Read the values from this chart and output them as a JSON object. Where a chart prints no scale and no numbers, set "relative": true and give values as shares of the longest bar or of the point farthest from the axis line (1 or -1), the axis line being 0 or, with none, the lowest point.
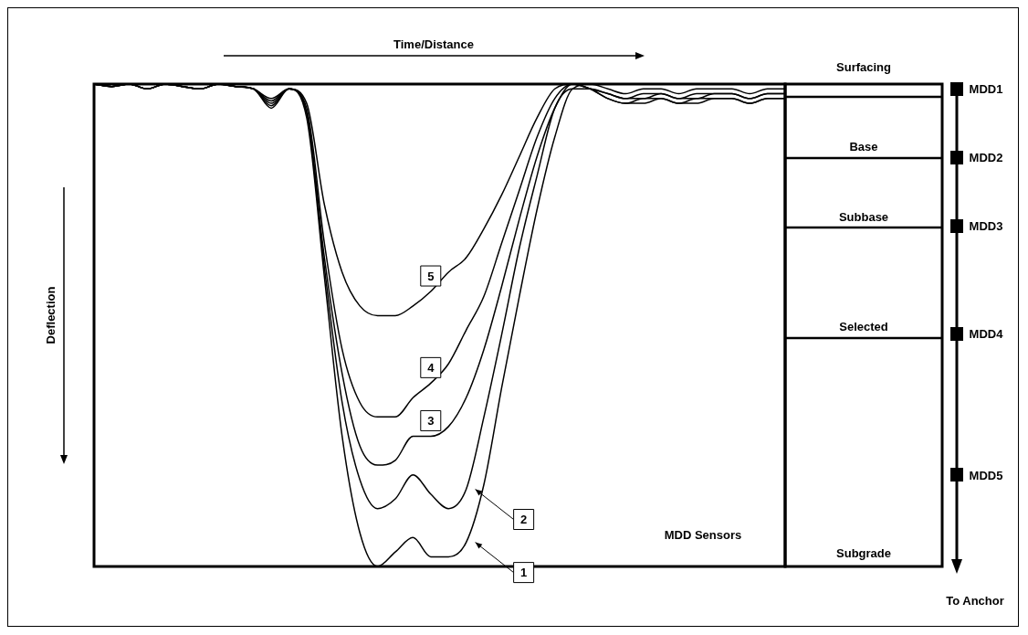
{
  "chart_data": {
    "type": "line",
    "relative": true,
    "marker": "none",
    "line_style": "solid",
    "xlabel": "Time/Distance",
    "ylabel": "Deflection",
    "categories": [
      null,
      null,
      null,
      null,
      null,
      null,
      null,
      null,
      null,
      null,
      null,
      null,
      null,
      null,
      null,
      null,
      null,
      null,
      null,
      null,
      null,
      null,
      null,
      null,
      null,
      null,
      null,
      null,
      null,
      null,
      null,
      null,
      null,
      null,
      null,
      null,
      null,
      null,
      null,
      null
    ],
    "series": [
      {
        "name": "1",
        "color": "#000000",
        "values": [
          0,
          -0.005,
          0,
          -0.01,
          0,
          -0.005,
          -0.01,
          0,
          -0.005,
          -0.01,
          -0.03,
          -0.01,
          -0.07,
          -0.4,
          -0.73,
          -0.93,
          -1,
          -0.97,
          -0.94,
          -0.98,
          -0.98,
          -0.95,
          -0.83,
          -0.63,
          -0.44,
          -0.26,
          -0.11,
          -0.01,
          0,
          -0.01,
          -0.02,
          -0.01,
          -0.01,
          -0.02,
          -0.01,
          -0.01,
          -0.01,
          -0.02,
          -0.01,
          -0.01
        ]
      },
      {
        "name": "2",
        "color": "#000000",
        "values": [
          0,
          -0.005,
          0,
          -0.01,
          0,
          -0.005,
          -0.01,
          0,
          -0.005,
          -0.01,
          -0.035,
          -0.01,
          -0.06,
          -0.38,
          -0.66,
          -0.82,
          -0.88,
          -0.86,
          -0.81,
          -0.85,
          -0.88,
          -0.84,
          -0.69,
          -0.52,
          -0.34,
          -0.19,
          -0.05,
          -0.01,
          -0.01,
          -0.02,
          -0.03,
          -0.02,
          -0.02,
          -0.03,
          -0.02,
          -0.02,
          -0.02,
          -0.03,
          -0.02,
          -0.02
        ]
      },
      {
        "name": "3",
        "color": "#000000",
        "values": [
          0,
          -0.005,
          0,
          -0.01,
          0,
          -0.005,
          -0.01,
          0,
          -0.005,
          -0.01,
          -0.04,
          -0.01,
          -0.06,
          -0.36,
          -0.6,
          -0.75,
          -0.79,
          -0.78,
          -0.73,
          -0.73,
          -0.71,
          -0.65,
          -0.55,
          -0.42,
          -0.28,
          -0.15,
          -0.05,
          0,
          -0.01,
          -0.02,
          -0.03,
          -0.03,
          -0.02,
          -0.03,
          -0.03,
          -0.02,
          -0.02,
          -0.03,
          -0.02,
          -0.02
        ]
      },
      {
        "name": "4",
        "color": "#000000",
        "values": [
          0,
          -0.005,
          0,
          -0.01,
          0,
          -0.005,
          -0.01,
          0,
          -0.005,
          -0.01,
          -0.045,
          -0.01,
          -0.05,
          -0.33,
          -0.55,
          -0.66,
          -0.69,
          -0.69,
          -0.65,
          -0.62,
          -0.58,
          -0.51,
          -0.44,
          -0.33,
          -0.22,
          -0.11,
          -0.03,
          0,
          -0.01,
          -0.03,
          -0.04,
          -0.03,
          -0.03,
          -0.04,
          -0.03,
          -0.03,
          -0.03,
          -0.04,
          -0.03,
          -0.03
        ]
      },
      {
        "name": "5",
        "color": "#000000",
        "values": [
          0,
          -0.005,
          0,
          -0.01,
          0,
          -0.005,
          -0.01,
          0,
          -0.005,
          -0.01,
          -0.05,
          -0.01,
          -0.04,
          -0.25,
          -0.39,
          -0.46,
          -0.48,
          -0.48,
          -0.46,
          -0.43,
          -0.39,
          -0.36,
          -0.3,
          -0.23,
          -0.15,
          -0.07,
          -0.01,
          0,
          -0.01,
          -0.03,
          -0.04,
          -0.04,
          -0.03,
          -0.04,
          -0.04,
          -0.03,
          -0.03,
          -0.04,
          -0.03,
          -0.03
        ]
      }
    ],
    "annotations": [
      "MDD Sensors",
      "Surfacing",
      "Base",
      "Subbase",
      "Selected",
      "Subgrade",
      "MDD1",
      "MDD2",
      "MDD3",
      "MDD4",
      "MDD5",
      "To Anchor"
    ]
  }
}
